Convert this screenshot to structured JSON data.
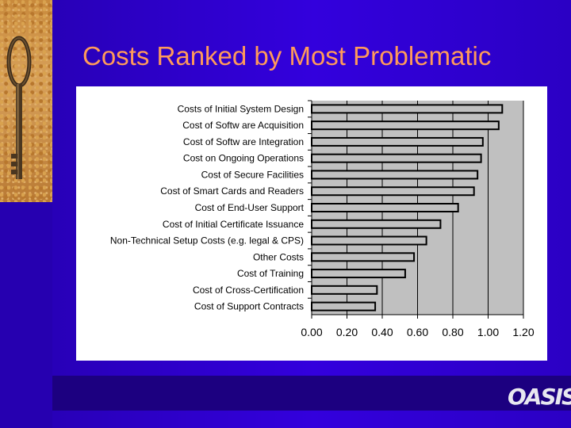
{
  "slide": {
    "title": "Costs Ranked by Most Problematic",
    "logo_text": "OASIS",
    "colors": {
      "background": "#3300dd",
      "title": "#ff9a5a",
      "plot_area": "#c0c0c0",
      "bar": "#c0c0c0"
    },
    "icons": [
      "key-icon"
    ]
  },
  "chart_data": {
    "type": "bar",
    "orientation": "horizontal",
    "categories": [
      "Costs of Initial System Design",
      "Cost of Softw are Acquisition",
      "Cost of Softw are Integration",
      "Cost on Ongoing Operations",
      "Cost of Secure Facilities",
      "Cost of Smart Cards and Readers",
      "Cost of End-User Support",
      "Cost of Initial Certificate Issuance",
      "Non-Technical Setup Costs (e.g. legal & CPS)",
      "Other Costs",
      "Cost of Training",
      "Cost of Cross-Certification",
      "Cost of Support Contracts"
    ],
    "values": [
      1.08,
      1.06,
      0.97,
      0.96,
      0.94,
      0.92,
      0.83,
      0.73,
      0.65,
      0.58,
      0.53,
      0.37,
      0.36
    ],
    "xticks": [
      "0.00",
      "0.20",
      "0.40",
      "0.60",
      "0.80",
      "1.00",
      "1.20"
    ],
    "xlim": [
      0,
      1.2
    ],
    "grid": "vertical",
    "legend": "none"
  }
}
